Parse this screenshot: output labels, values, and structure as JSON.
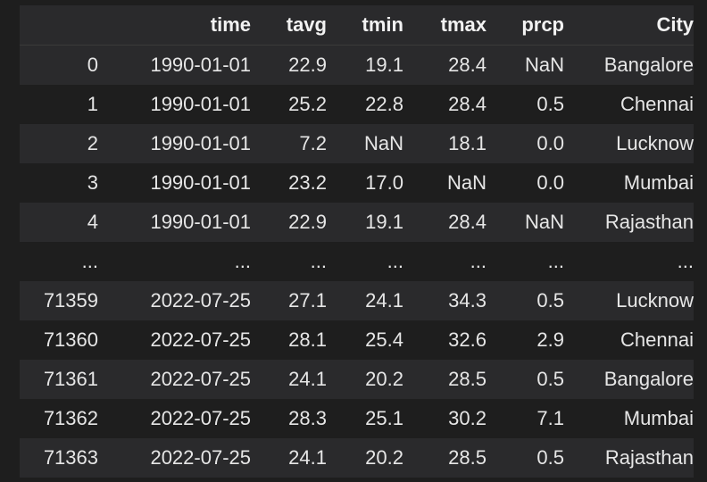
{
  "table": {
    "columns": [
      "",
      "time",
      "tavg",
      "tmin",
      "tmax",
      "prcp",
      "City"
    ],
    "rows": [
      [
        "0",
        "1990-01-01",
        "22.9",
        "19.1",
        "28.4",
        "NaN",
        "Bangalore"
      ],
      [
        "1",
        "1990-01-01",
        "25.2",
        "22.8",
        "28.4",
        "0.5",
        "Chennai"
      ],
      [
        "2",
        "1990-01-01",
        "7.2",
        "NaN",
        "18.1",
        "0.0",
        "Lucknow"
      ],
      [
        "3",
        "1990-01-01",
        "23.2",
        "17.0",
        "NaN",
        "0.0",
        "Mumbai"
      ],
      [
        "4",
        "1990-01-01",
        "22.9",
        "19.1",
        "28.4",
        "NaN",
        "Rajasthan"
      ],
      [
        "...",
        "...",
        "...",
        "...",
        "...",
        "...",
        "..."
      ],
      [
        "71359",
        "2022-07-25",
        "27.1",
        "24.1",
        "34.3",
        "0.5",
        "Lucknow"
      ],
      [
        "71360",
        "2022-07-25",
        "28.1",
        "25.4",
        "32.6",
        "2.9",
        "Chennai"
      ],
      [
        "71361",
        "2022-07-25",
        "24.1",
        "20.2",
        "28.5",
        "0.5",
        "Bangalore"
      ],
      [
        "71362",
        "2022-07-25",
        "28.3",
        "25.1",
        "30.2",
        "7.1",
        "Mumbai"
      ],
      [
        "71363",
        "2022-07-25",
        "24.1",
        "20.2",
        "28.5",
        "0.5",
        "Rajasthan"
      ]
    ]
  },
  "colors": {
    "background": "#1e1e1e",
    "stripe": "#2a2a2c",
    "text": "#e6e6e6"
  }
}
